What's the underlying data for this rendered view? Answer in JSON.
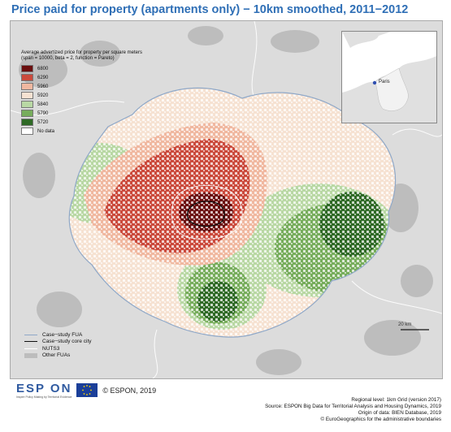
{
  "title": "Price paid for property (apartments only) − 10km smoothed, 2011−2012",
  "legend": {
    "title_line1": "Average advertized price for property per square meters",
    "title_line2": "(span = 10000, beta = 2, function = Pareto)",
    "classes": [
      {
        "label": "6800",
        "color": "#6b0e0e"
      },
      {
        "label": "6290",
        "color": "#cb4a3c"
      },
      {
        "label": "5960",
        "color": "#f0b8a0"
      },
      {
        "label": "5920",
        "color": "#f6e2d2"
      },
      {
        "label": "5840",
        "color": "#b9d8a4"
      },
      {
        "label": "5790",
        "color": "#77ad5c"
      },
      {
        "label": "5720",
        "color": "#2f6a26"
      },
      {
        "label": "No data",
        "color": "#ffffff"
      }
    ]
  },
  "boundary_legend": [
    {
      "label": "Case−study FUA",
      "color": "#8fa8c8"
    },
    {
      "label": "Case−study core city",
      "color": "#111111"
    },
    {
      "label": "NUTS3",
      "color": "#ffffff"
    },
    {
      "label": "Other FUAs",
      "color": "#bdbdbd"
    }
  ],
  "inset": {
    "city_label": "Paris"
  },
  "scale_label": "20 km",
  "branding": {
    "espon_word": "ESP ON",
    "espon_tagline": "Inspire Policy Making by Territorial Evidence",
    "copyright": "© ESPON, 2019"
  },
  "credits": [
    "Regional level: 1km Grid (version 2017)",
    "Source: ESPON Big Data for Territorial Analysis and Housing Dynamics, 2019",
    "Origin of data: BIEN Database, 2019",
    "© EuroGeographics for the administrative boundaries"
  ],
  "colors": {
    "title": "#2f6fb6",
    "fua_fill": "#bdbdbd",
    "background": "#dcdcdc"
  }
}
